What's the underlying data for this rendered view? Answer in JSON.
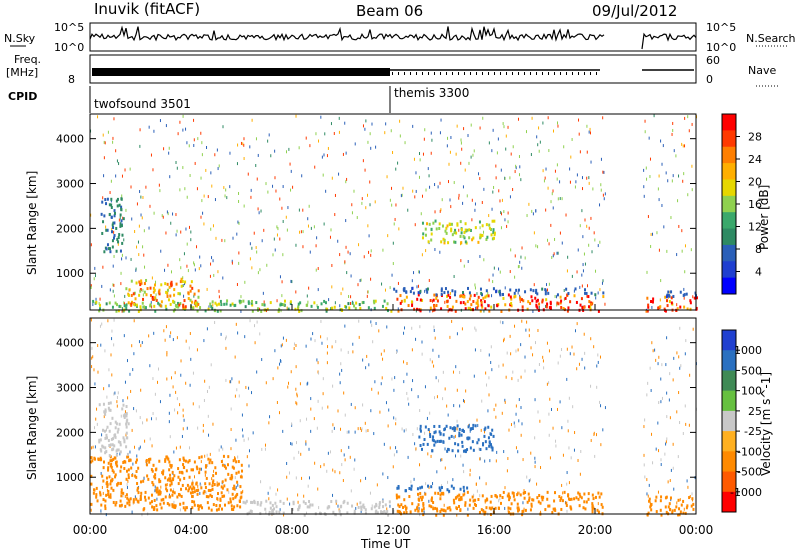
{
  "header": {
    "station": "Inuvik (fitACF)",
    "beam": "Beam 06",
    "date": "09/Jul/2012"
  },
  "nsky_panel": {
    "left_label": "N.Sky",
    "left_ticks": [
      "10^5",
      "10^0"
    ],
    "right_ticks": [
      "10^5",
      "10^0"
    ],
    "right_label": "N.Search"
  },
  "freq_panel": {
    "left_label_1": "Freq.",
    "left_label_2": "[MHz]",
    "left_tick": "8",
    "right_ticks": [
      "60",
      "0"
    ],
    "right_label": "Nave"
  },
  "cpid_panel": {
    "label": "CPID",
    "segments": [
      {
        "name": "twofsound 3501",
        "start_ut": 0
      },
      {
        "name": "themis 3300",
        "start_ut": 12
      }
    ]
  },
  "time_axis": {
    "ticks": [
      "00:00",
      "04:00",
      "08:00",
      "12:00",
      "16:00",
      "20:00",
      "00:00"
    ],
    "label": "Time UT"
  },
  "chart_data": [
    {
      "type": "heatmap",
      "title": "Power [dB]",
      "ylabel": "Slant Range [km]",
      "xlabel": "",
      "xlim": [
        0,
        24
      ],
      "ylim": [
        180,
        4550
      ],
      "yticks": [
        1000,
        2000,
        3000,
        4000
      ],
      "colorbar": {
        "label": "Power [dB]",
        "ticks": [
          "28",
          "24",
          "20",
          "16",
          "12",
          "8",
          "4"
        ],
        "colors": [
          "#ff0000",
          "#ff3a00",
          "#ff7f00",
          "#ffaf00",
          "#e6d700",
          "#8fd14f",
          "#3aa86b",
          "#2e8a63",
          "#2a5fb8",
          "#1f3fd0",
          "#0000ff"
        ]
      },
      "data_gaps_ut": [
        [
          20.4,
          21.9
        ]
      ],
      "echo_regions": [
        {
          "t0": 0.0,
          "t1": 12.0,
          "r0": 180,
          "r1": 420,
          "value": 14
        },
        {
          "t0": 1.4,
          "t1": 4.3,
          "r0": 280,
          "r1": 900,
          "value": 22
        },
        {
          "t0": 0.4,
          "t1": 1.3,
          "r0": 1500,
          "r1": 2700,
          "value": 8
        },
        {
          "t0": 12.1,
          "t1": 20.3,
          "r0": 180,
          "r1": 550,
          "value": 26
        },
        {
          "t0": 12.0,
          "t1": 20.3,
          "r0": 550,
          "r1": 700,
          "value": 6
        },
        {
          "t0": 13.0,
          "t1": 16.0,
          "r0": 1700,
          "r1": 2200,
          "value": 16
        },
        {
          "t0": 22.0,
          "t1": 24.0,
          "r0": 180,
          "r1": 500,
          "value": 26
        },
        {
          "t0": 22.0,
          "t1": 24.0,
          "r0": 500,
          "r1": 620,
          "value": 6
        }
      ]
    },
    {
      "type": "heatmap",
      "title": "Velocity [m s^-1]",
      "ylabel": "Slant Range [km]",
      "xlabel": "Time UT",
      "xlim": [
        0,
        24
      ],
      "ylim": [
        180,
        4550
      ],
      "yticks": [
        1000,
        2000,
        3000,
        4000
      ],
      "colorbar": {
        "label": "Velocity [m s^-1]",
        "ticks": [
          "1000",
          "500",
          "100",
          "25",
          "-25",
          "-100",
          "-500",
          "-1000"
        ],
        "colors": [
          "#2040d0",
          "#2a70c0",
          "#3f8a55",
          "#66c040",
          "#c8c8c8",
          "#ffb020",
          "#ff8a00",
          "#ff5a00",
          "#ff0000"
        ]
      },
      "data_gaps_ut": [
        [
          20.4,
          21.9
        ]
      ],
      "echo_regions": [
        {
          "t0": 0.0,
          "t1": 6.0,
          "r0": 300,
          "r1": 1500,
          "value": -150
        },
        {
          "t0": 0.3,
          "t1": 1.5,
          "r0": 1500,
          "r1": 2700,
          "value": 0
        },
        {
          "t0": 6.0,
          "t1": 12.0,
          "r0": 180,
          "r1": 500,
          "value": 0
        },
        {
          "t0": 12.1,
          "t1": 20.3,
          "r0": 180,
          "r1": 700,
          "value": -200
        },
        {
          "t0": 12.1,
          "t1": 15.0,
          "r0": 700,
          "r1": 850,
          "value": 300
        },
        {
          "t0": 13.0,
          "t1": 16.0,
          "r0": 1600,
          "r1": 2200,
          "value": 300
        },
        {
          "t0": 22.0,
          "t1": 24.0,
          "r0": 180,
          "r1": 600,
          "value": -200
        }
      ]
    }
  ]
}
